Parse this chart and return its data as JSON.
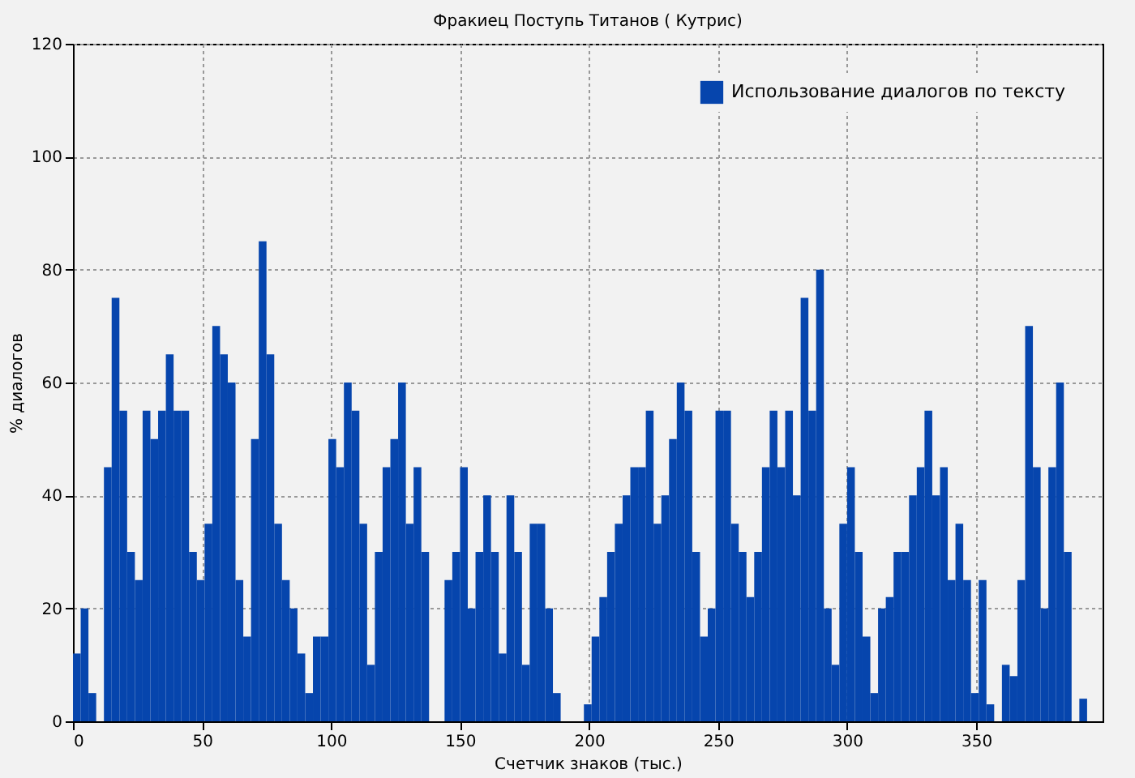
{
  "chart_data": {
    "type": "histogram",
    "title": "Фракиец Поступь Титанов ( Кутрис)",
    "xlabel": "Счетчик знаков (тыс.)",
    "ylabel": "% диалогов",
    "bins": [
      0,
      3,
      6,
      9,
      12,
      15,
      18,
      21,
      24,
      27,
      30,
      33,
      36,
      39,
      42,
      45,
      48,
      51,
      54,
      57,
      60,
      63,
      66,
      69,
      72,
      75,
      78,
      81,
      84,
      87,
      90,
      93,
      96,
      99,
      102,
      105,
      108,
      111,
      114,
      117,
      120,
      123,
      126,
      129,
      132,
      135,
      138,
      141,
      144,
      147,
      150,
      153,
      156,
      159,
      162,
      165,
      168,
      171,
      174,
      177,
      180,
      183,
      186,
      189,
      192,
      195,
      198,
      201,
      204,
      207,
      210,
      213,
      216,
      219,
      222,
      225,
      228,
      231,
      234,
      237,
      240,
      243,
      246,
      249,
      252,
      255,
      258,
      261,
      264,
      267,
      270,
      273,
      276,
      279,
      282,
      285,
      288,
      291,
      294,
      297,
      300,
      303,
      306,
      309,
      312,
      315,
      318,
      321,
      324,
      327,
      330,
      333,
      336,
      339,
      342,
      345,
      348,
      351,
      354,
      357,
      360,
      363,
      366,
      369,
      372,
      375,
      378,
      381,
      384,
      387,
      390,
      393,
      396
    ],
    "series": [
      {
        "name": "Использование диалогов по тексту",
        "color": "#0645ad",
        "values": [
          12,
          20,
          5,
          0,
          45,
          75,
          55,
          30,
          25,
          55,
          50,
          55,
          65,
          55,
          55,
          30,
          25,
          35,
          70,
          65,
          60,
          25,
          15,
          50,
          85,
          65,
          35,
          25,
          20,
          12,
          5,
          15,
          15,
          50,
          45,
          60,
          55,
          35,
          10,
          30,
          45,
          50,
          60,
          35,
          45,
          30,
          0,
          0,
          25,
          30,
          45,
          20,
          30,
          40,
          30,
          12,
          40,
          30,
          10,
          35,
          35,
          20,
          5,
          0,
          0,
          0,
          3,
          15,
          22,
          30,
          35,
          40,
          45,
          45,
          55,
          35,
          40,
          50,
          60,
          55,
          30,
          15,
          20,
          55,
          55,
          35,
          30,
          22,
          30,
          45,
          55,
          45,
          55,
          40,
          75,
          55,
          80,
          20,
          10,
          35,
          45,
          30,
          15,
          5,
          20,
          22,
          30,
          30,
          40,
          45,
          55,
          40,
          45,
          25,
          35,
          25,
          5,
          25,
          3,
          0,
          10,
          8,
          25,
          70,
          45,
          20,
          45,
          60,
          30,
          0,
          4,
          0
        ]
      }
    ],
    "xlim": [
      0,
      399
    ],
    "xticks": [
      0,
      50,
      100,
      150,
      200,
      250,
      300,
      350
    ],
    "ylim": [
      0,
      120
    ],
    "yticks": [
      0,
      20,
      40,
      60,
      80,
      100,
      120
    ],
    "grid": true,
    "legend": "top right"
  }
}
